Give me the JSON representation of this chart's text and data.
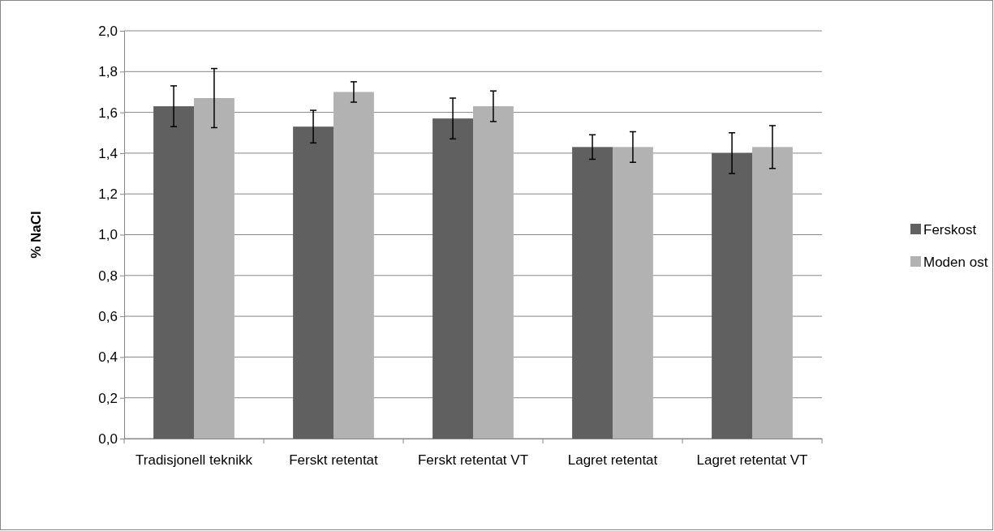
{
  "chart_data": {
    "type": "bar",
    "ylabel": "% NaCl",
    "categories": [
      "Tradisjonell teknikk",
      "Ferskt retentat",
      "Ferskt retentat VT",
      "Lagret retentat",
      "Lagret retentat VT"
    ],
    "series": [
      {
        "name": "Ferskost",
        "color": "#606060",
        "values": [
          1.63,
          1.53,
          1.57,
          1.43,
          1.4
        ],
        "errors": [
          0.1,
          0.08,
          0.1,
          0.06,
          0.1
        ]
      },
      {
        "name": "Moden ost",
        "color": "#b2b2b2",
        "values": [
          1.67,
          1.7,
          1.63,
          1.43,
          1.43
        ],
        "errors": [
          0.145,
          0.05,
          0.075,
          0.075,
          0.105
        ]
      }
    ],
    "ylim": [
      0,
      2
    ],
    "yticks": [
      {
        "value": 0,
        "label": "0,0"
      },
      {
        "value": 0.2,
        "label": "0,2"
      },
      {
        "value": 0.4,
        "label": "0,4"
      },
      {
        "value": 0.6,
        "label": "0,6"
      },
      {
        "value": 0.8,
        "label": "0,8"
      },
      {
        "value": 1,
        "label": "1,0"
      },
      {
        "value": 1.2,
        "label": "1,2"
      },
      {
        "value": 1.4,
        "label": "1,4"
      },
      {
        "value": 1.6,
        "label": "1,6"
      },
      {
        "value": 1.8,
        "label": "1,8"
      },
      {
        "value": 2,
        "label": "2,0"
      }
    ],
    "grid": "y",
    "legend": "right"
  }
}
